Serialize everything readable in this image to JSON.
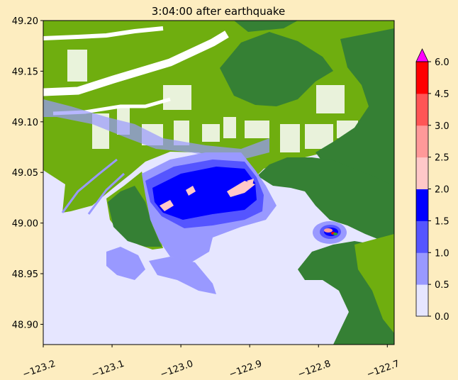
{
  "title": "3:04:00 after earthquake",
  "map": {
    "xticks": [
      "−123.2",
      "−123.1",
      "−123.0",
      "−122.9",
      "−122.8",
      "−122.7"
    ],
    "xtick_values": [
      -123.2,
      -123.1,
      -123.0,
      -122.9,
      -122.8,
      -122.7
    ],
    "yticks": [
      "49.20",
      "49.15",
      "49.10",
      "49.05",
      "49.00",
      "48.95",
      "48.90"
    ],
    "ytick_values": [
      49.2,
      49.15,
      49.1,
      49.05,
      49.0,
      48.95,
      48.9
    ],
    "xlim": [
      -123.2,
      -122.69
    ],
    "ylim": [
      48.88,
      49.2
    ]
  },
  "colorbar": {
    "ticks": [
      "0.0",
      "0.5",
      "1.0",
      "1.5",
      "2.0",
      "2.5",
      "3.0",
      "4.5",
      "6.0"
    ],
    "levels": [
      0.0,
      0.5,
      1.0,
      1.5,
      2.0,
      2.5,
      3.0,
      4.5,
      6.0
    ],
    "colors": [
      "#e6e6ff",
      "#9999ff",
      "#5555ff",
      "#0000ff",
      "#ffc8c8",
      "#ff9999",
      "#ff5555",
      "#ff0000"
    ],
    "extend_color": "#ff00ff"
  },
  "colors": {
    "background": "#fdedc0",
    "water": "#e6e6ff",
    "lowland": "#6fae0f",
    "highland": "#358034",
    "road": "#ffffff"
  }
}
